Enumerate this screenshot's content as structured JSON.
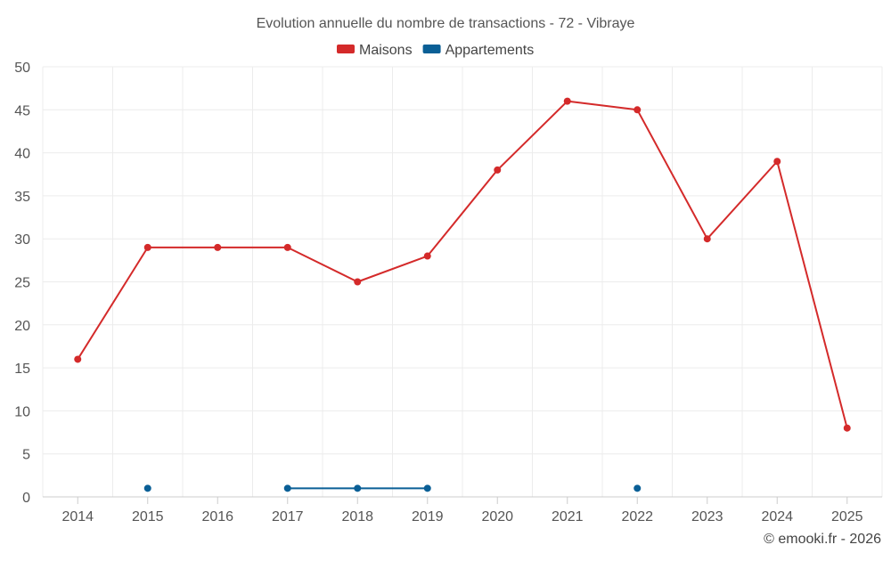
{
  "chart_data": {
    "type": "line",
    "title": "Evolution annuelle du nombre de transactions - 72 - Vibraye",
    "xlabel": "",
    "ylabel": "",
    "categories": [
      "2014",
      "2015",
      "2016",
      "2017",
      "2018",
      "2019",
      "2020",
      "2021",
      "2022",
      "2023",
      "2024",
      "2025"
    ],
    "ylim": [
      0,
      50
    ],
    "yticks": [
      0,
      5,
      10,
      15,
      20,
      25,
      30,
      35,
      40,
      45,
      50
    ],
    "ytick_labels": [
      "0",
      "5",
      "10",
      "15",
      "20",
      "25",
      "30",
      "35",
      "40",
      "45",
      "50"
    ],
    "grid": true,
    "legend_position": "top-center",
    "series": [
      {
        "name": "Maisons",
        "color": "#d42a2a",
        "values": [
          16,
          29,
          29,
          29,
          25,
          28,
          38,
          46,
          45,
          30,
          39,
          8
        ]
      },
      {
        "name": "Appartements",
        "color": "#0a5f96",
        "values": [
          null,
          1,
          null,
          1,
          1,
          1,
          null,
          null,
          1,
          null,
          null,
          null
        ]
      }
    ]
  },
  "credit": "© emooki.fr - 2026"
}
